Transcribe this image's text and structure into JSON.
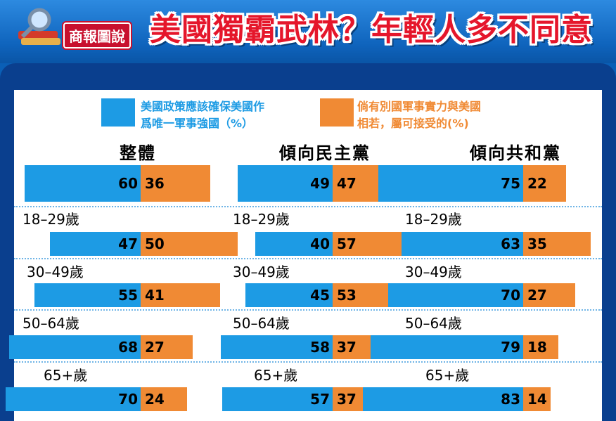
{
  "header": {
    "logo_label": "商報圖說",
    "title": "美國獨霸武林？年輕人多不同意"
  },
  "legend": {
    "blue_text": [
      "美國政策應該確保美國作",
      "爲唯一軍事強國（%）"
    ],
    "orange_text": [
      "倘有別國軍事實力與美國",
      "相若，屬可接受的(%)"
    ]
  },
  "colors": {
    "blue": "#1d9be4",
    "orange": "#f08a34",
    "title_red": "#e5162b"
  },
  "chart_data": {
    "type": "bar",
    "series": [
      {
        "name": "美國政策應該確保美國作爲唯一軍事強國（%）"
      },
      {
        "name": "倘有別國軍事實力與美國相若，屬可接受的(%)"
      }
    ],
    "groups": [
      {
        "title": "整體",
        "overall": [
          60,
          36
        ],
        "ages": [
          {
            "label": "18–29歲",
            "values": [
              47,
              50
            ]
          },
          {
            "label": "30–49歲",
            "values": [
              55,
              41
            ]
          },
          {
            "label": "50–64歲",
            "values": [
              68,
              27
            ]
          },
          {
            "label": "65+歲",
            "values": [
              70,
              24
            ]
          }
        ]
      },
      {
        "title": "傾向民主黨",
        "overall": [
          49,
          47
        ],
        "ages": [
          {
            "label": "18–29歲",
            "values": [
              40,
              57
            ]
          },
          {
            "label": "30–49歲",
            "values": [
              45,
              53
            ]
          },
          {
            "label": "50–64歲",
            "values": [
              58,
              37
            ]
          },
          {
            "label": "65+歲",
            "values": [
              57,
              37
            ]
          }
        ]
      },
      {
        "title": "傾向共和黨",
        "overall": [
          75,
          22
        ],
        "ages": [
          {
            "label": "18–29歲",
            "values": [
              63,
              35
            ]
          },
          {
            "label": "30–49歲",
            "values": [
              70,
              27
            ]
          },
          {
            "label": "50–64歲",
            "values": [
              79,
              18
            ]
          },
          {
            "label": "65+歲",
            "values": [
              83,
              14
            ]
          }
        ]
      }
    ]
  }
}
